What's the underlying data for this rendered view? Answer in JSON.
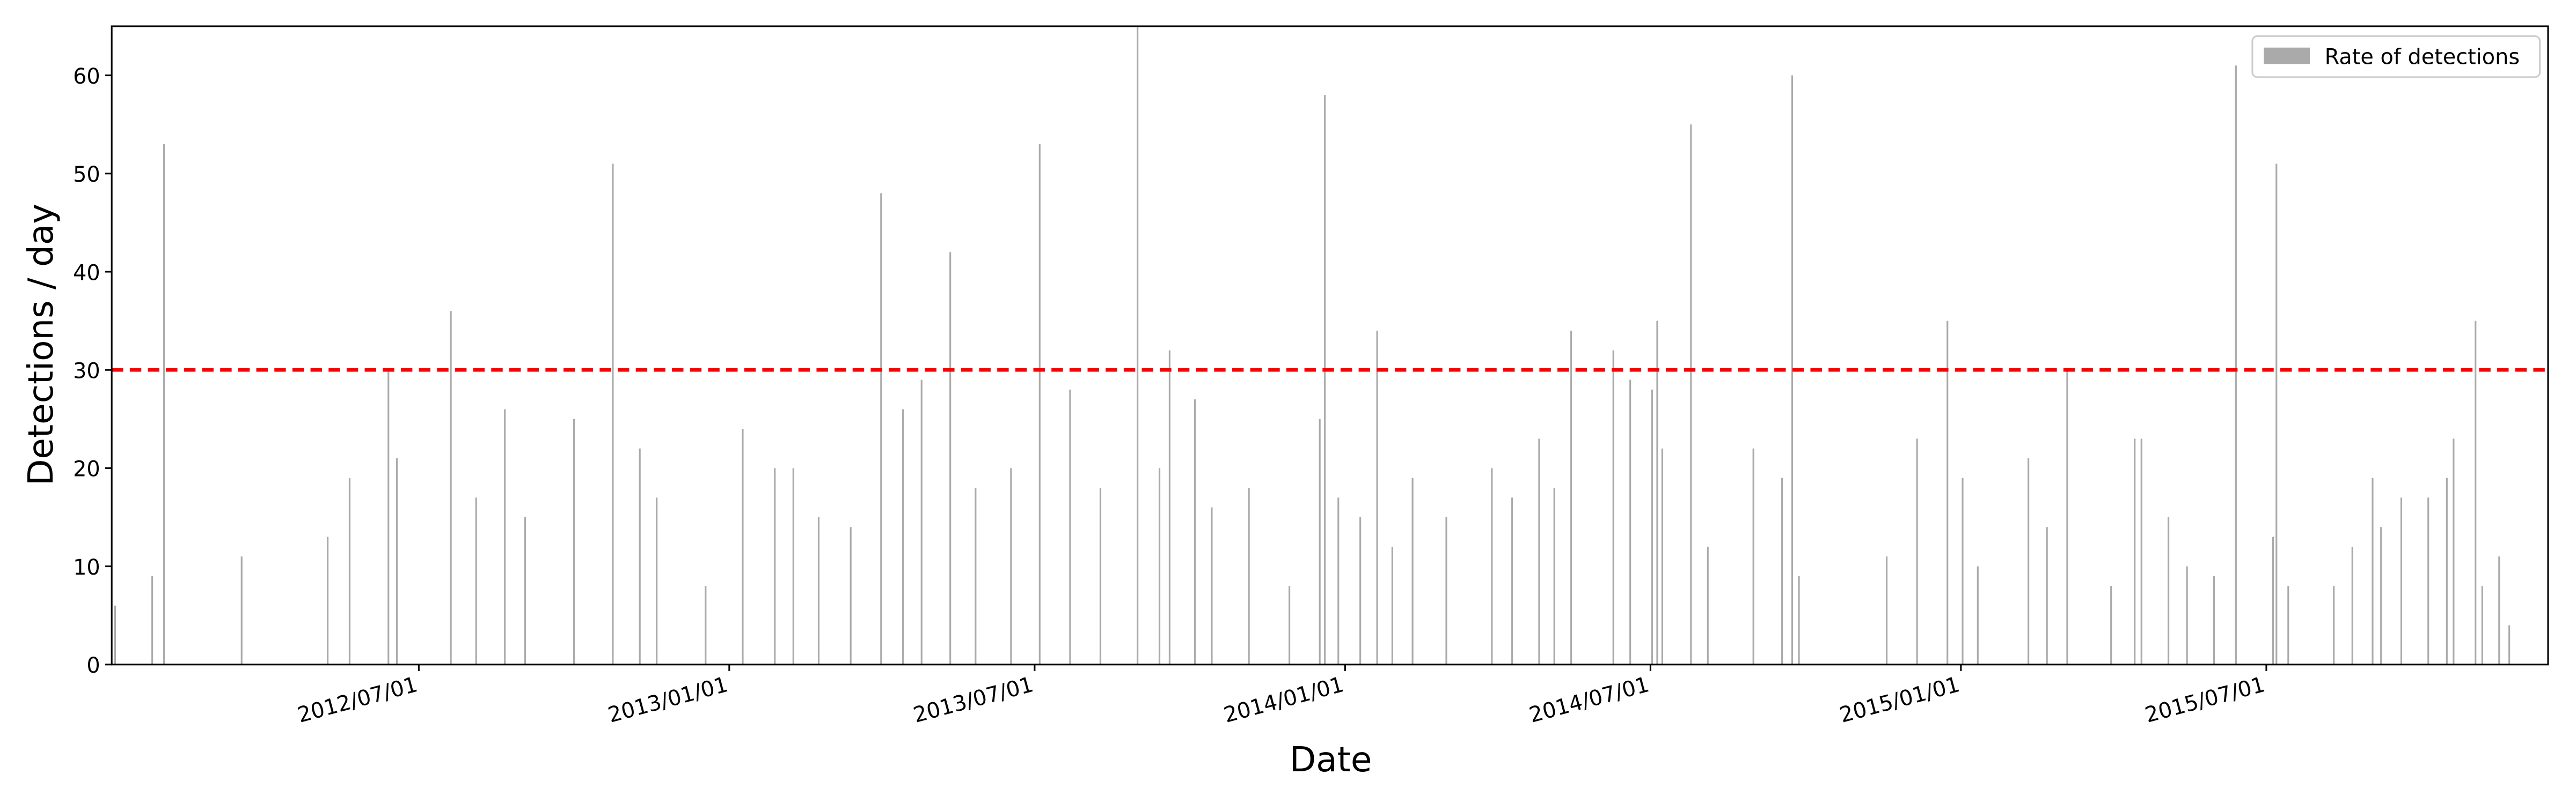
{
  "chart_data": {
    "type": "bar",
    "xlabel": "Date",
    "ylabel": "Detections / day",
    "xlim": [
      "2012-01-01",
      "2015-12-15"
    ],
    "xticks": [
      {
        "value": "2012-07-01",
        "label": "2012/07/01"
      },
      {
        "value": "2013-01-01",
        "label": "2013/01/01"
      },
      {
        "value": "2013-07-01",
        "label": "2013/07/01"
      },
      {
        "value": "2014-01-01",
        "label": "2014/01/01"
      },
      {
        "value": "2014-07-01",
        "label": "2014/07/01"
      },
      {
        "value": "2015-01-01",
        "label": "2015/01/01"
      },
      {
        "value": "2015-07-01",
        "label": "2015/07/01"
      }
    ],
    "ylim": [
      0,
      65
    ],
    "yticks": [
      0,
      10,
      20,
      30,
      40,
      50,
      60
    ],
    "threshold": 30,
    "threshold_color": "#ff0000",
    "legend": "upper right",
    "x": [
      "2012-01-03",
      "2012-01-25",
      "2012-02-01",
      "2012-03-18",
      "2012-05-08",
      "2012-05-21",
      "2012-06-13",
      "2012-06-18",
      "2012-07-20",
      "2012-08-04",
      "2012-08-21",
      "2012-09-02",
      "2012-10-01",
      "2012-10-24",
      "2012-11-09",
      "2012-11-19",
      "2012-12-18",
      "2013-01-09",
      "2013-01-28",
      "2013-02-08",
      "2013-02-23",
      "2013-03-14",
      "2013-04-01",
      "2013-04-14",
      "2013-04-25",
      "2013-05-12",
      "2013-05-27",
      "2013-06-17",
      "2013-07-04",
      "2013-07-22",
      "2013-08-09",
      "2013-08-31",
      "2013-09-13",
      "2013-09-19",
      "2013-10-04",
      "2013-10-14",
      "2013-11-05",
      "2013-11-29",
      "2013-12-17",
      "2013-12-20",
      "2013-12-28",
      "2014-01-10",
      "2014-01-20",
      "2014-01-29",
      "2014-02-10",
      "2014-03-02",
      "2014-03-29",
      "2014-04-10",
      "2014-04-26",
      "2014-05-05",
      "2014-05-15",
      "2014-06-09",
      "2014-06-19",
      "2014-07-02",
      "2014-07-05",
      "2014-07-08",
      "2014-07-25",
      "2014-08-04",
      "2014-08-31",
      "2014-09-17",
      "2014-09-23",
      "2014-09-27",
      "2014-11-18",
      "2014-12-06",
      "2014-12-24",
      "2015-01-02",
      "2015-01-11",
      "2015-02-10",
      "2015-02-21",
      "2015-03-05",
      "2015-03-31",
      "2015-04-14",
      "2015-04-18",
      "2015-05-04",
      "2015-05-15",
      "2015-05-31",
      "2015-06-13",
      "2015-07-05",
      "2015-07-07",
      "2015-07-14",
      "2015-08-10",
      "2015-08-21",
      "2015-09-02",
      "2015-09-07",
      "2015-09-19",
      "2015-10-05",
      "2015-10-16",
      "2015-10-20",
      "2015-11-02",
      "2015-11-06",
      "2015-11-16",
      "2015-11-22"
    ],
    "series": [
      {
        "name": "Rate of detections",
        "color": "#aaaaaa",
        "values": [
          6,
          9,
          53,
          11,
          13,
          19,
          30,
          21,
          36,
          17,
          26,
          15,
          25,
          51,
          22,
          17,
          8,
          24,
          20,
          20,
          15,
          14,
          48,
          26,
          29,
          42,
          18,
          20,
          53,
          28,
          18,
          65,
          20,
          32,
          27,
          16,
          18,
          8,
          25,
          58,
          17,
          15,
          34,
          12,
          19,
          15,
          20,
          17,
          23,
          18,
          34,
          32,
          29,
          28,
          35,
          22,
          55,
          12,
          22,
          19,
          60,
          9,
          11,
          23,
          35,
          19,
          10,
          21,
          14,
          30,
          8,
          23,
          23,
          15,
          10,
          9,
          61,
          13,
          51,
          8,
          8,
          12,
          19,
          14,
          17,
          17,
          19,
          23,
          35,
          8,
          11,
          4
        ]
      }
    ]
  }
}
